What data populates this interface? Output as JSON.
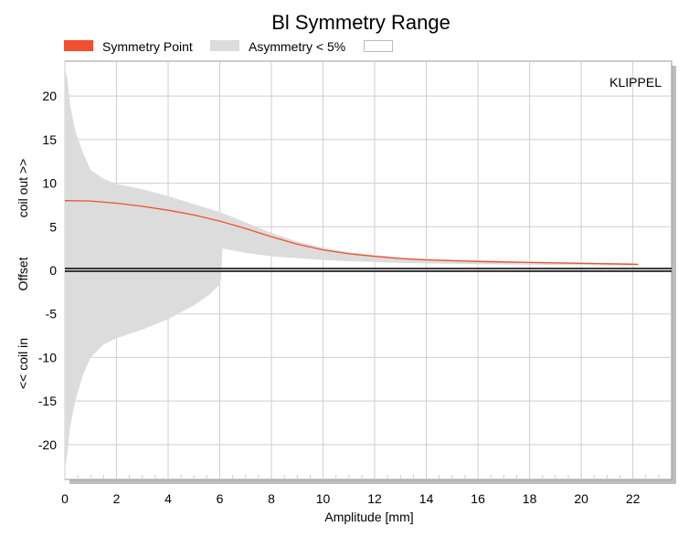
{
  "chart_data": {
    "type": "area",
    "title": "Bl Symmetry Range",
    "xlabel": "Amplitude [mm]",
    "ylabel_parts": [
      "coil out >>",
      "Offset",
      "<< coil in"
    ],
    "watermark": "KLIPPEL",
    "xlim": [
      0,
      23.5
    ],
    "ylim": [
      -24,
      24
    ],
    "xticks": [
      0,
      2,
      4,
      6,
      8,
      10,
      12,
      14,
      16,
      18,
      20,
      22
    ],
    "yticks": [
      -20,
      -15,
      -10,
      -5,
      0,
      5,
      10,
      15,
      20
    ],
    "grid": true,
    "legend": [
      {
        "label": "Symmetry Point",
        "color": "#f05030"
      },
      {
        "label": "Asymmetry < 5%",
        "color": "#dcdcdc"
      },
      {
        "label": "",
        "color": "#ffffff"
      }
    ],
    "symmetry_point": {
      "x": [
        0,
        1,
        2,
        3,
        4,
        5,
        6,
        7,
        8,
        9,
        10,
        11,
        12,
        13,
        14,
        15,
        16,
        17,
        18,
        19,
        20,
        21,
        22,
        22.2
      ],
      "y": [
        8.0,
        7.95,
        7.7,
        7.35,
        6.9,
        6.35,
        5.65,
        4.8,
        3.85,
        3.0,
        2.35,
        1.9,
        1.6,
        1.35,
        1.2,
        1.1,
        1.02,
        0.96,
        0.9,
        0.85,
        0.8,
        0.75,
        0.7,
        0.68
      ]
    },
    "asymmetry_band_upper": {
      "x": [
        0,
        0.1,
        0.2,
        0.4,
        0.7,
        1,
        1.5,
        2,
        3,
        4,
        5,
        6,
        7,
        8,
        9,
        10,
        11,
        12,
        13,
        14,
        15,
        16,
        17,
        18,
        19,
        20,
        21,
        22,
        22.2
      ],
      "y": [
        23,
        22,
        19,
        16,
        13.5,
        11.5,
        10.5,
        9.9,
        9.3,
        8.5,
        7.6,
        6.7,
        5.5,
        4.3,
        3.3,
        2.6,
        2.1,
        1.75,
        1.5,
        1.35,
        1.25,
        1.15,
        1.07,
        1.0,
        0.95,
        0.9,
        0.85,
        0.8,
        0.78
      ]
    },
    "asymmetry_band_lower": {
      "x": [
        0,
        0.1,
        0.2,
        0.4,
        0.7,
        1,
        1.5,
        2,
        3,
        4,
        5,
        5.6,
        6.0,
        6.05,
        6.1,
        7,
        8,
        9,
        10,
        11,
        12,
        13,
        14,
        15,
        16,
        17,
        18,
        19,
        20,
        21,
        22,
        22.2
      ],
      "y": [
        -23,
        -21,
        -18,
        -15,
        -12,
        -10,
        -8.5,
        -7.8,
        -6.8,
        -5.6,
        -4.0,
        -2.8,
        -1.6,
        -1.0,
        2.5,
        2.0,
        1.6,
        1.4,
        1.2,
        1.05,
        0.95,
        0.85,
        0.8,
        0.75,
        0.7,
        0.68,
        0.65,
        0.62,
        0.6,
        0.58,
        0.56,
        0.55
      ]
    }
  }
}
